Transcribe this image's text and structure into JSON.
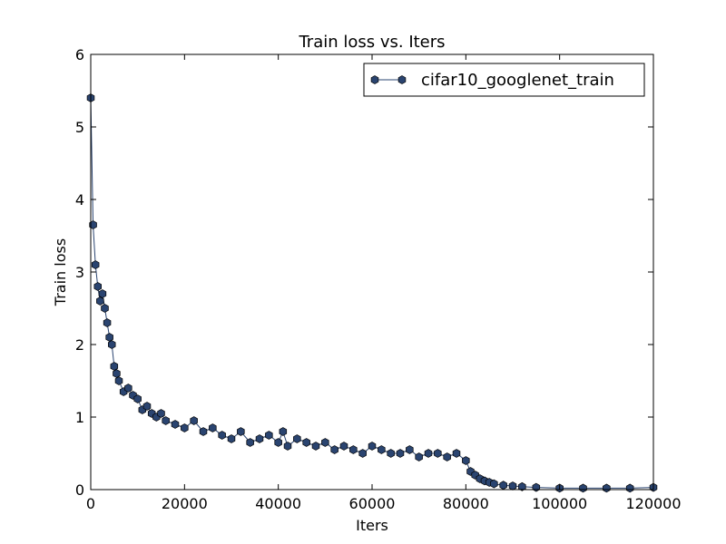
{
  "chart_data": {
    "type": "line",
    "title": "Train loss  vs. Iters",
    "xlabel": "Iters",
    "ylabel": "Train loss",
    "xlim": [
      0,
      120000
    ],
    "ylim": [
      0,
      6
    ],
    "xticks": [
      0,
      20000,
      40000,
      60000,
      80000,
      100000,
      120000
    ],
    "yticks": [
      0,
      1,
      2,
      3,
      4,
      5,
      6
    ],
    "xtick_labels": [
      "0",
      "20000",
      "40000",
      "60000",
      "80000",
      "100000",
      "120000"
    ],
    "ytick_labels": [
      "0",
      "1",
      "2",
      "3",
      "4",
      "5",
      "6"
    ],
    "grid": false,
    "legend_position": "top-right",
    "colors": {
      "series": "#2a4470",
      "marker_edge": "#000000"
    },
    "series": [
      {
        "name": "cifar10_googlenet_train",
        "marker": "hexagon",
        "x": [
          0,
          500,
          1000,
          1500,
          2000,
          2500,
          3000,
          3500,
          4000,
          4500,
          5000,
          5500,
          6000,
          7000,
          8000,
          9000,
          10000,
          11000,
          12000,
          13000,
          14000,
          15000,
          16000,
          18000,
          20000,
          22000,
          24000,
          26000,
          28000,
          30000,
          32000,
          34000,
          36000,
          38000,
          40000,
          41000,
          42000,
          44000,
          46000,
          48000,
          50000,
          52000,
          54000,
          56000,
          58000,
          60000,
          62000,
          64000,
          66000,
          68000,
          70000,
          72000,
          74000,
          76000,
          78000,
          80000,
          81000,
          82000,
          83000,
          84000,
          85000,
          86000,
          88000,
          90000,
          92000,
          95000,
          100000,
          105000,
          110000,
          115000,
          120000
        ],
        "y": [
          5.4,
          3.65,
          3.1,
          2.8,
          2.6,
          2.7,
          2.5,
          2.3,
          2.1,
          2.0,
          1.7,
          1.6,
          1.5,
          1.35,
          1.4,
          1.3,
          1.25,
          1.1,
          1.15,
          1.05,
          1.0,
          1.05,
          0.95,
          0.9,
          0.85,
          0.95,
          0.8,
          0.85,
          0.75,
          0.7,
          0.8,
          0.65,
          0.7,
          0.75,
          0.65,
          0.8,
          0.6,
          0.7,
          0.65,
          0.6,
          0.65,
          0.55,
          0.6,
          0.55,
          0.5,
          0.6,
          0.55,
          0.5,
          0.5,
          0.55,
          0.45,
          0.5,
          0.5,
          0.45,
          0.5,
          0.4,
          0.25,
          0.2,
          0.15,
          0.12,
          0.1,
          0.08,
          0.06,
          0.05,
          0.04,
          0.03,
          0.02,
          0.02,
          0.02,
          0.02,
          0.03
        ]
      }
    ]
  }
}
